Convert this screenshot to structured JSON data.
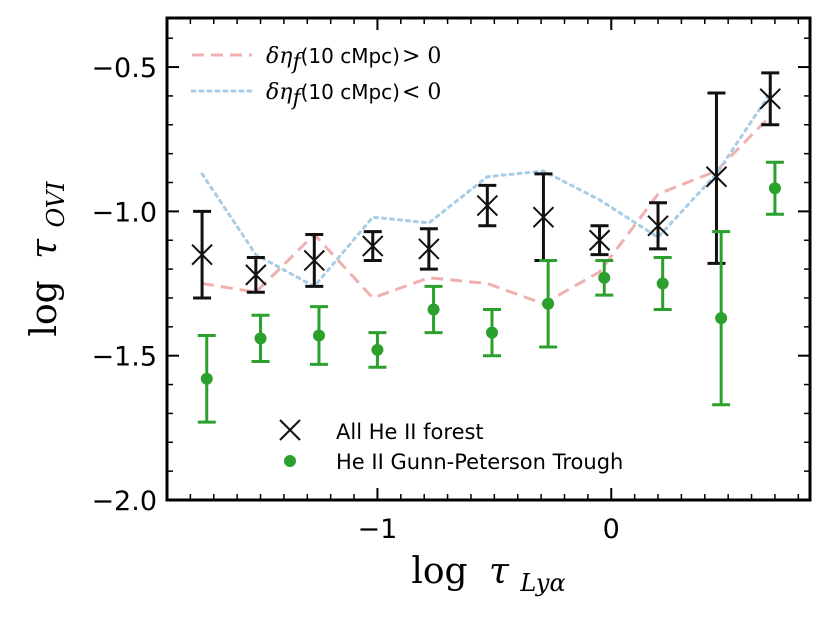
{
  "chart_data": {
    "type": "scatter",
    "xlabel_main": "log",
    "xlabel_symbol": "τ",
    "xlabel_sub": "Lyα",
    "ylabel_main": "log",
    "ylabel_symbol": "τ",
    "ylabel_sub": "OVI",
    "xlim": [
      -1.9,
      0.85
    ],
    "ylim": [
      -2.0,
      -0.33
    ],
    "x_ticks": [
      {
        "value": -1,
        "label": "−1"
      },
      {
        "value": 0,
        "label": "0"
      }
    ],
    "y_ticks": [
      {
        "value": -0.5,
        "label": "−0.5"
      },
      {
        "value": -1.0,
        "label": "−1.0"
      },
      {
        "value": -1.5,
        "label": "−1.5"
      },
      {
        "value": -2.0,
        "label": "−2.0"
      }
    ],
    "colors": {
      "black": "#111111",
      "green": "#2ca02c",
      "pink": "#f0b0b0",
      "blue": "#a8cde6"
    },
    "lines": [
      {
        "name": "positive",
        "legend_prefix": "δη",
        "legend_sub": "f",
        "legend_middle": "(10 cMpc)",
        "legend_op": "> 0",
        "style": "dashed",
        "color": "#f0b0b0",
        "x": [
          -1.75,
          -1.52,
          -1.27,
          -1.02,
          -0.78,
          -0.53,
          -0.29,
          -0.05,
          0.2,
          0.45,
          0.68
        ],
        "y": [
          -1.25,
          -1.28,
          -1.08,
          -1.3,
          -1.23,
          -1.25,
          -1.32,
          -1.21,
          -0.94,
          -0.86,
          -0.67
        ]
      },
      {
        "name": "negative",
        "legend_prefix": "δη",
        "legend_sub": "f",
        "legend_middle": "(10 cMpc)",
        "legend_op": "< 0",
        "style": "dotted",
        "color": "#a8cde6",
        "x": [
          -1.75,
          -1.52,
          -1.27,
          -1.02,
          -0.78,
          -0.53,
          -0.29,
          -0.05,
          0.2,
          0.45,
          0.68
        ],
        "y": [
          -0.87,
          -1.15,
          -1.26,
          -1.02,
          -1.04,
          -0.88,
          -0.86,
          -0.96,
          -1.09,
          -0.87,
          -0.59
        ]
      }
    ],
    "series": [
      {
        "name": "All He II forest",
        "legend_label": "All He II forest",
        "marker": "x",
        "color": "#111111",
        "x": [
          -1.75,
          -1.52,
          -1.27,
          -1.02,
          -0.78,
          -0.53,
          -0.29,
          -0.05,
          0.2,
          0.45,
          0.68
        ],
        "y": [
          -1.15,
          -1.22,
          -1.17,
          -1.12,
          -1.13,
          -0.98,
          -1.02,
          -1.1,
          -1.05,
          -0.88,
          -0.61
        ],
        "yerr_low": [
          0.15,
          0.06,
          0.09,
          0.05,
          0.07,
          0.07,
          0.15,
          0.05,
          0.08,
          0.3,
          0.09
        ],
        "yerr_high": [
          0.15,
          0.06,
          0.09,
          0.05,
          0.07,
          0.07,
          0.15,
          0.05,
          0.08,
          0.29,
          0.09
        ]
      },
      {
        "name": "He II Gunn-Peterson Trough",
        "legend_label": "He II Gunn-Peterson Trough",
        "marker": "o",
        "color": "#2ca02c",
        "x": [
          -1.73,
          -1.5,
          -1.25,
          -1.0,
          -0.76,
          -0.51,
          -0.27,
          -0.03,
          0.22,
          0.47,
          0.7
        ],
        "y": [
          -1.58,
          -1.44,
          -1.43,
          -1.48,
          -1.34,
          -1.42,
          -1.32,
          -1.23,
          -1.25,
          -1.37,
          -0.92
        ],
        "yerr_low": [
          0.15,
          0.08,
          0.1,
          0.06,
          0.08,
          0.08,
          0.15,
          0.06,
          0.09,
          0.3,
          0.09
        ],
        "yerr_high": [
          0.15,
          0.08,
          0.1,
          0.06,
          0.08,
          0.08,
          0.15,
          0.06,
          0.09,
          0.3,
          0.09
        ]
      }
    ]
  }
}
